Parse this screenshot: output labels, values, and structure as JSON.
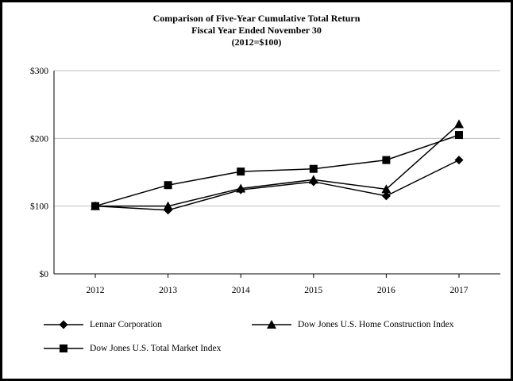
{
  "chart_data": {
    "type": "line",
    "title_lines": [
      "Comparison of Five-Year Cumulative Total Return",
      "Fiscal Year Ended November 30",
      "(2012=$100)"
    ],
    "x_labels": [
      "2012",
      "2013",
      "2014",
      "2015",
      "2016",
      "2017"
    ],
    "y_ticks": [
      "$0",
      "$100",
      "$200",
      "$300"
    ],
    "y_tick_values": [
      0,
      100,
      200,
      300
    ],
    "ylim": [
      0,
      300
    ],
    "grid": true,
    "legend_position": "bottom",
    "series": [
      {
        "name": "Lennar Corporation",
        "marker": "diamond",
        "values": [
          100,
          94,
          124,
          136,
          115,
          168
        ]
      },
      {
        "name": "Dow Jones U.S. Home Construction Index",
        "marker": "triangle",
        "values": [
          100,
          100,
          126,
          139,
          125,
          221
        ]
      },
      {
        "name": "Dow Jones U.S. Total Market Index",
        "marker": "square",
        "values": [
          100,
          131,
          151,
          155,
          168,
          205
        ]
      }
    ],
    "colors": {
      "line": "#000000",
      "axis": "#000000",
      "grid": "#bfbfbf",
      "text": "#000000",
      "background": "#ffffff"
    }
  }
}
